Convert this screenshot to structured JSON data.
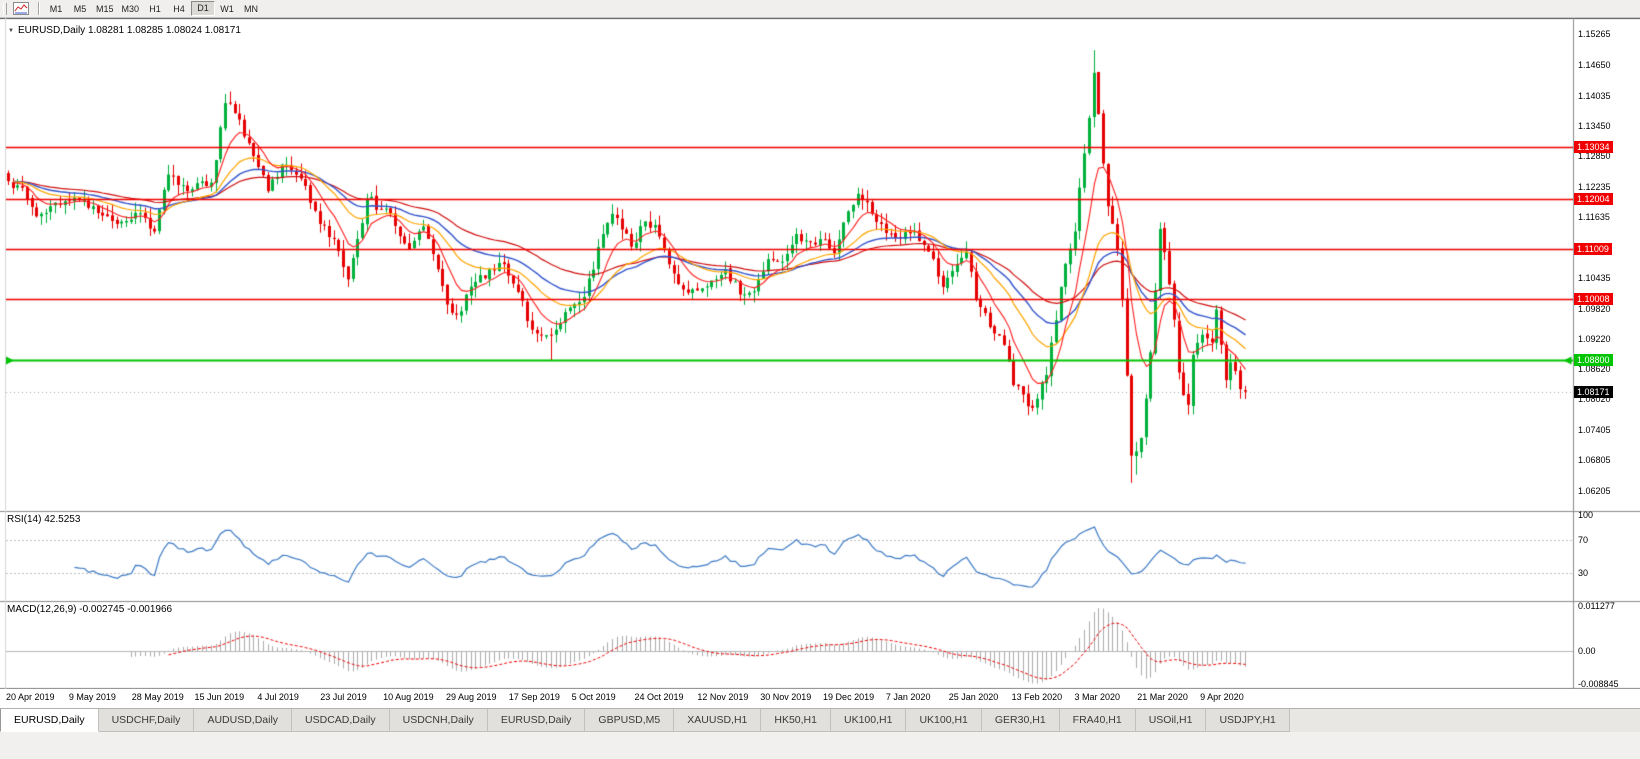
{
  "toolbar": {
    "timeframes": [
      "M1",
      "M5",
      "M15",
      "M30",
      "H1",
      "H4",
      "D1",
      "W1",
      "MN"
    ],
    "active": "D1"
  },
  "chart": {
    "title": "EURUSD,Daily 1.08281 1.08285 1.08024 1.08171"
  },
  "rsi_panel": {
    "label": "RSI(14) 42.5253",
    "axis_labels": [
      "100",
      "70",
      "30"
    ]
  },
  "macd_panel": {
    "label": "MACD(12,26,9) -0.002745 -0.001966",
    "axis_labels": [
      "0.011277",
      "0.00",
      "-0.008845"
    ]
  },
  "chart_data": {
    "type": "candlestick",
    "symbol": "EURUSD",
    "timeframe": "Daily",
    "ohlc_display": {
      "open": "1.08281",
      "high": "1.08285",
      "low": "1.08024",
      "close": "1.08171"
    },
    "y_axis_labels": [
      "1.15265",
      "1.14650",
      "1.14035",
      "1.13450",
      "1.12850",
      "1.12235",
      "1.11635",
      "1.11020",
      "1.10435",
      "1.09820",
      "1.09220",
      "1.08620",
      "1.08020",
      "1.07405",
      "1.06805",
      "1.06205"
    ],
    "price_range": {
      "max": 1.1543,
      "min": 1.0588
    },
    "horizontal_lines": [
      {
        "value": 1.13034,
        "label": "1.13034",
        "color": "#F00000",
        "type": "resistance",
        "width": 1.6
      },
      {
        "value": 1.12004,
        "label": "1.12004",
        "color": "#F00000",
        "type": "resistance",
        "width": 1.6
      },
      {
        "value": 1.11009,
        "label": "1.11009",
        "color": "#F00000",
        "type": "resistance",
        "width": 1.6
      },
      {
        "value": 1.10008,
        "label": "1.10008",
        "color": "#F00000",
        "type": "resistance",
        "width": 1.6
      },
      {
        "value": 1.088,
        "label": "1.08800",
        "color": "#00C400",
        "type": "support",
        "width": 2,
        "arrows": true
      }
    ],
    "current_price": {
      "value": 1.08171,
      "label": "1.08171",
      "badge_color": "#000000"
    },
    "x_axis_labels": [
      "20 Apr 2019",
      "9 May 2019",
      "28 May 2019",
      "15 Jun 2019",
      "4 Jul 2019",
      "23 Jul 2019",
      "10 Aug 2019",
      "29 Aug 2019",
      "17 Sep 2019",
      "5 Oct 2019",
      "24 Oct 2019",
      "12 Nov 2019",
      "30 Nov 2019",
      "19 Dec 2019",
      "7 Jan 2020",
      "25 Jan 2020",
      "13 Feb 2020",
      "3 Mar 2020",
      "21 Mar 2020",
      "9 Apr 2020"
    ],
    "x_label_last_candle": 253,
    "colors": {
      "bull": "#00B03C",
      "bear": "#E60000",
      "bg": "#FFFFFF"
    },
    "candles": {
      "count": 263,
      "seed": 12,
      "noise": 0.001,
      "anchors": [
        [
          0,
          1.1235
        ],
        [
          3,
          1.1222
        ],
        [
          6,
          1.1165
        ],
        [
          9,
          1.1185
        ],
        [
          14,
          1.1202
        ],
        [
          18,
          1.1185
        ],
        [
          23,
          1.115
        ],
        [
          27,
          1.1172
        ],
        [
          31,
          1.1135
        ],
        [
          34,
          1.1248
        ],
        [
          38,
          1.1215
        ],
        [
          43,
          1.1232
        ],
        [
          46,
          1.139
        ],
        [
          48,
          1.137
        ],
        [
          52,
          1.1285
        ],
        [
          55,
          1.1215
        ],
        [
          58,
          1.1268
        ],
        [
          62,
          1.124
        ],
        [
          66,
          1.115
        ],
        [
          69,
          1.112
        ],
        [
          72,
          1.104
        ],
        [
          74,
          1.112
        ],
        [
          76,
          1.12
        ],
        [
          81,
          1.117
        ],
        [
          85,
          1.11
        ],
        [
          88,
          1.1145
        ],
        [
          91,
          1.106
        ],
        [
          93,
          1.099
        ],
        [
          95,
          1.097
        ],
        [
          99,
          1.1035
        ],
        [
          102,
          1.106
        ],
        [
          105,
          1.107
        ],
        [
          108,
          1.1015
        ],
        [
          111,
          1.094
        ],
        [
          115,
          1.093
        ],
        [
          118,
          1.0975
        ],
        [
          122,
          1.1005
        ],
        [
          126,
          1.113
        ],
        [
          128,
          1.117
        ],
        [
          132,
          1.1105
        ],
        [
          135,
          1.1155
        ],
        [
          137,
          1.1148
        ],
        [
          140,
          1.107
        ],
        [
          143,
          1.102
        ],
        [
          147,
          1.1022
        ],
        [
          150,
          1.104
        ],
        [
          152,
          1.106
        ],
        [
          155,
          1.101
        ],
        [
          158,
          1.1016
        ],
        [
          161,
          1.108
        ],
        [
          164,
          1.1075
        ],
        [
          167,
          1.113
        ],
        [
          170,
          1.1115
        ],
        [
          172,
          1.112
        ],
        [
          175,
          1.1092
        ],
        [
          178,
          1.1175
        ],
        [
          180,
          1.121
        ],
        [
          183,
          1.117
        ],
        [
          185,
          1.115
        ],
        [
          188,
          1.1122
        ],
        [
          192,
          1.1135
        ],
        [
          195,
          1.1095
        ],
        [
          198,
          1.1025
        ],
        [
          201,
          1.107
        ],
        [
          203,
          1.1095
        ],
        [
          205,
          1.1
        ],
        [
          208,
          1.0945
        ],
        [
          211,
          1.091
        ],
        [
          213,
          1.083
        ],
        [
          217,
          1.0785
        ],
        [
          220,
          1.085
        ],
        [
          223,
          1.1025
        ],
        [
          226,
          1.1135
        ],
        [
          228,
          1.129
        ],
        [
          230,
          1.145
        ],
        [
          232,
          1.127
        ],
        [
          233,
          1.1185
        ],
        [
          235,
          1.11
        ],
        [
          236,
          1.1
        ],
        [
          238,
          1.069
        ],
        [
          240,
          1.0725
        ],
        [
          242,
          1.0895
        ],
        [
          244,
          1.114
        ],
        [
          246,
          1.103
        ],
        [
          247,
          1.096
        ],
        [
          248,
          1.0855
        ],
        [
          249,
          1.081
        ],
        [
          250,
          1.0791
        ],
        [
          251,
          1.089
        ],
        [
          253,
          1.093
        ],
        [
          255,
          1.0915
        ],
        [
          256,
          1.098
        ],
        [
          257,
          1.091
        ],
        [
          258,
          1.084
        ],
        [
          259,
          1.0875
        ],
        [
          260,
          1.0858
        ],
        [
          261,
          1.0822
        ],
        [
          262,
          1.08171
        ]
      ],
      "wick_overrides": [
        [
          46,
          "h",
          1.1408
        ],
        [
          47,
          "h",
          1.1413
        ],
        [
          115,
          "l",
          1.0879
        ],
        [
          213,
          "l",
          1.0827
        ],
        [
          217,
          "l",
          1.0778
        ],
        [
          230,
          "h",
          1.1495
        ],
        [
          231,
          "h",
          1.1452
        ],
        [
          238,
          "l",
          1.0636
        ],
        [
          239,
          "l",
          1.0652
        ],
        [
          262,
          "h",
          1.08285
        ],
        [
          262,
          "l",
          1.08024
        ]
      ]
    },
    "moving_averages": [
      {
        "period": 55,
        "method": "ema",
        "color": "#D01010",
        "width": 1.2
      },
      {
        "period": 34,
        "method": "ema",
        "color": "#3355CC",
        "width": 1.4
      },
      {
        "period": 21,
        "method": "ema",
        "color": "#FFA500",
        "width": 1.2
      },
      {
        "period": 8,
        "method": "ema",
        "color": "#FF2020",
        "width": 1.1
      }
    ],
    "indicators": {
      "rsi": {
        "name": "RSI",
        "period": 14,
        "value": 42.5253,
        "levels": [
          70,
          30
        ],
        "color": "#3E7BC6"
      },
      "macd": {
        "name": "MACD",
        "fast": 12,
        "slow": 26,
        "signal": 9,
        "value": -0.002745,
        "signal_value": -0.001966,
        "histogram_color": "#ABABAB",
        "signal_color": "#F00000"
      }
    }
  },
  "tabbar": {
    "tabs": [
      "EURUSD,Daily",
      "USDCHF,Daily",
      "AUDUSD,Daily",
      "USDCAD,Daily",
      "USDCNH,Daily",
      "EURUSD,Daily",
      "GBPUSD,M5",
      "XAUUSD,H1",
      "HK50,H1",
      "UK100,H1",
      "UK100,H1",
      "GER30,H1",
      "FRA40,H1",
      "USOil,H1",
      "USDJPY,H1"
    ],
    "active_index": 0
  }
}
